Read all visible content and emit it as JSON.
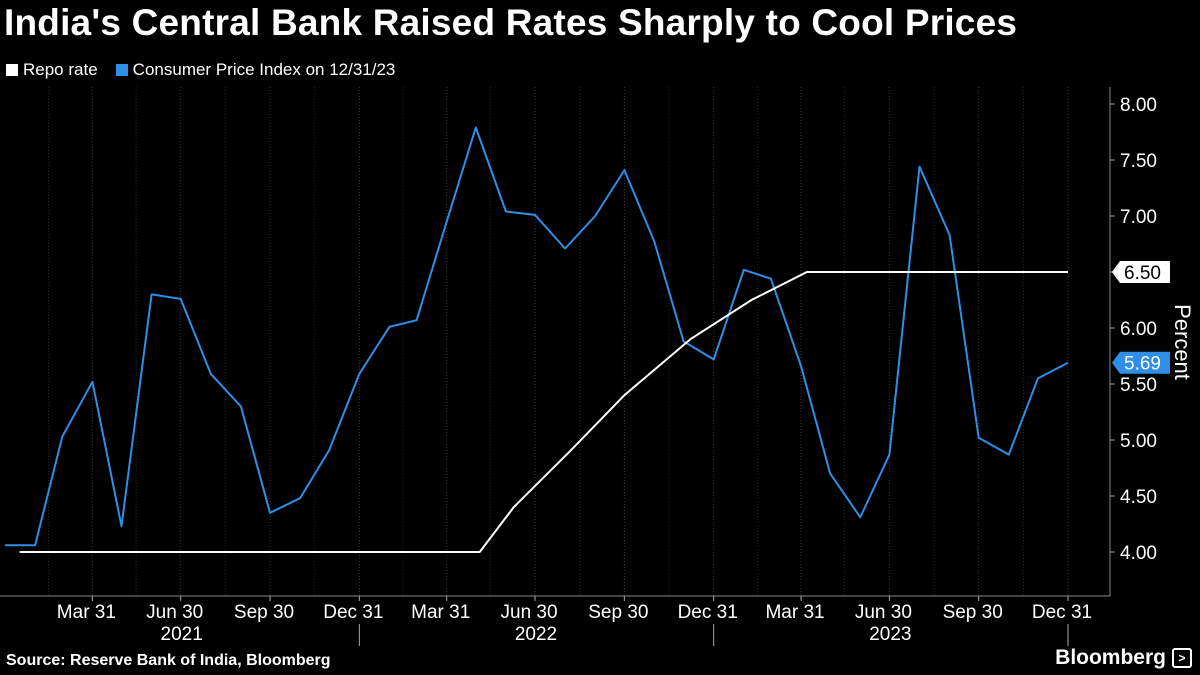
{
  "title": "India's Central Bank Raised Rates Sharply to Cool Prices",
  "legend": {
    "items": [
      {
        "label": "Repo rate",
        "color": "#ffffff"
      },
      {
        "label": "Consumer Price Index on 12/31/23",
        "color": "#2f8ee8"
      }
    ]
  },
  "footer": {
    "source": "Source: Reserve Bank of India, Bloomberg",
    "brand": "Bloomberg",
    "brand_icon": "terminal-icon"
  },
  "chart_data": {
    "type": "line",
    "ylabel": "Percent",
    "ylim": [
      3.7,
      8.1
    ],
    "y_ticks": [
      "4.00",
      "4.50",
      "5.00",
      "5.50",
      "6.00",
      "6.50",
      "7.00",
      "7.50",
      "8.00"
    ],
    "xlim": [
      "2020-12-31",
      "2023-12-31"
    ],
    "x_tick_labels": [
      {
        "label": "Mar 31",
        "date": "2021-03-31"
      },
      {
        "label": "Jun 30",
        "date": "2021-06-30"
      },
      {
        "label": "Sep 30",
        "date": "2021-09-30"
      },
      {
        "label": "Dec 31",
        "date": "2021-12-31"
      },
      {
        "label": "Mar 31",
        "date": "2022-03-31"
      },
      {
        "label": "Jun 30",
        "date": "2022-06-30"
      },
      {
        "label": "Sep 30",
        "date": "2022-09-30"
      },
      {
        "label": "Dec 31",
        "date": "2022-12-31"
      },
      {
        "label": "Mar 31",
        "date": "2023-03-31"
      },
      {
        "label": "Jun 30",
        "date": "2023-06-30"
      },
      {
        "label": "Sep 30",
        "date": "2023-09-30"
      },
      {
        "label": "Dec 31",
        "date": "2023-12-31"
      }
    ],
    "years": [
      {
        "label": "2021",
        "date": "2021-07-01"
      },
      {
        "label": "2022",
        "date": "2022-07-01"
      },
      {
        "label": "2023",
        "date": "2023-07-01"
      }
    ],
    "series": [
      {
        "name": "Consumer Price Index on 12/31/23",
        "color": "#2f8ee8",
        "end_label": "5.69",
        "points": [
          [
            "2020-12-31",
            4.06
          ],
          [
            "2021-01-31",
            4.06
          ],
          [
            "2021-02-28",
            5.03
          ],
          [
            "2021-03-31",
            5.52
          ],
          [
            "2021-04-30",
            4.23
          ],
          [
            "2021-05-31",
            6.3
          ],
          [
            "2021-06-30",
            6.26
          ],
          [
            "2021-07-31",
            5.59
          ],
          [
            "2021-08-31",
            5.3
          ],
          [
            "2021-09-30",
            4.35
          ],
          [
            "2021-10-31",
            4.48
          ],
          [
            "2021-11-30",
            4.91
          ],
          [
            "2021-12-31",
            5.59
          ],
          [
            "2022-01-31",
            6.01
          ],
          [
            "2022-02-28",
            6.07
          ],
          [
            "2022-03-31",
            6.95
          ],
          [
            "2022-04-30",
            7.79
          ],
          [
            "2022-05-31",
            7.04
          ],
          [
            "2022-06-30",
            7.01
          ],
          [
            "2022-07-31",
            6.71
          ],
          [
            "2022-08-31",
            7.0
          ],
          [
            "2022-09-30",
            7.41
          ],
          [
            "2022-10-31",
            6.77
          ],
          [
            "2022-11-30",
            5.88
          ],
          [
            "2022-12-31",
            5.72
          ],
          [
            "2023-01-31",
            6.52
          ],
          [
            "2023-02-28",
            6.44
          ],
          [
            "2023-03-31",
            5.66
          ],
          [
            "2023-04-30",
            4.7
          ],
          [
            "2023-05-31",
            4.31
          ],
          [
            "2023-06-30",
            4.87
          ],
          [
            "2023-07-31",
            7.44
          ],
          [
            "2023-08-31",
            6.83
          ],
          [
            "2023-09-30",
            5.02
          ],
          [
            "2023-10-31",
            4.87
          ],
          [
            "2023-11-30",
            5.55
          ],
          [
            "2023-12-31",
            5.69
          ]
        ]
      },
      {
        "name": "Repo rate",
        "color": "#ffffff",
        "end_label": "6.50",
        "points": [
          [
            "2021-01-15",
            4.0
          ],
          [
            "2022-05-04",
            4.0
          ],
          [
            "2022-06-08",
            4.4
          ],
          [
            "2022-08-05",
            4.9
          ],
          [
            "2022-09-30",
            5.4
          ],
          [
            "2022-12-07",
            5.9
          ],
          [
            "2023-02-08",
            6.25
          ],
          [
            "2023-04-06",
            6.5
          ],
          [
            "2023-12-31",
            6.5
          ]
        ]
      }
    ]
  }
}
